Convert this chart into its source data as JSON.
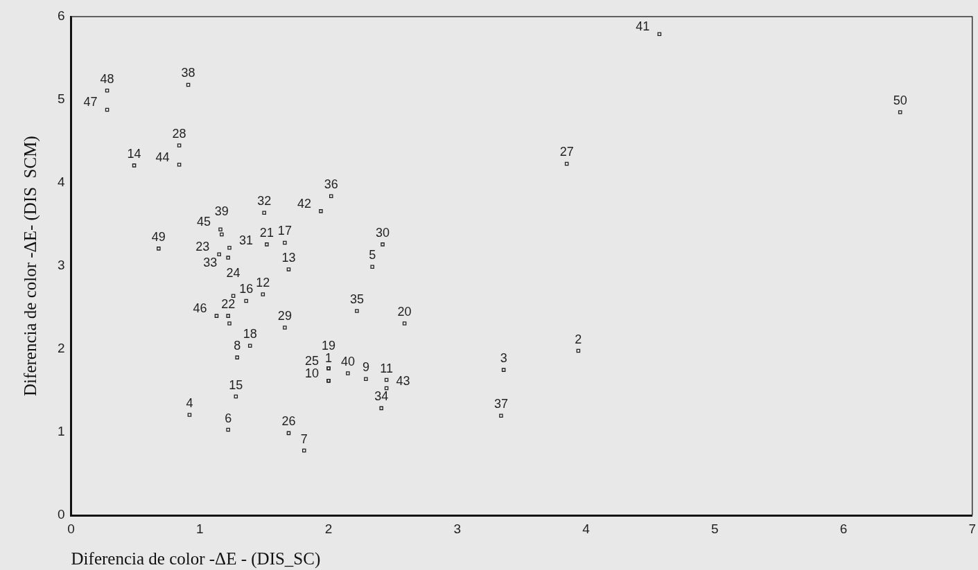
{
  "chart_data": {
    "type": "scatter",
    "xlabel": "Diferencia de color -ΔE - (DIS_SC)",
    "ylabel": "Diferencia de color -ΔE- (DIS  SCM)",
    "xlim": [
      0,
      7
    ],
    "xticks": [
      0,
      1,
      2,
      3,
      4,
      5,
      6,
      7
    ],
    "ylim": [
      0,
      6
    ],
    "yticks": [
      0,
      1,
      2,
      3,
      4,
      5,
      6
    ],
    "grid": false,
    "legend": false,
    "marker": "square",
    "series": [
      {
        "color": "#222222",
        "x": [
          2.0,
          3.94,
          3.36,
          0.92,
          2.34,
          1.22,
          1.81,
          1.29,
          2.29,
          2.0,
          2.45,
          1.49,
          1.69,
          0.49,
          1.28,
          1.36,
          1.66,
          1.39,
          2.0,
          2.59,
          1.52,
          1.22,
          1.15,
          1.26,
          2.0,
          1.69,
          3.85,
          0.84,
          1.66,
          2.42,
          1.23,
          1.5,
          1.22,
          2.41,
          2.22,
          2.02,
          3.34,
          0.91,
          1.17,
          2.15,
          4.57,
          1.94,
          2.45,
          0.84,
          1.16,
          1.13,
          0.28,
          0.28,
          0.68,
          6.44,
          1.23
        ],
        "values": [
          1.62,
          1.98,
          1.75,
          1.21,
          2.99,
          1.03,
          0.78,
          1.9,
          1.64,
          1.62,
          1.63,
          2.66,
          2.96,
          4.21,
          1.43,
          2.58,
          3.28,
          2.04,
          1.77,
          2.31,
          3.26,
          2.4,
          3.14,
          2.64,
          1.77,
          0.99,
          4.23,
          4.45,
          2.26,
          3.26,
          3.22,
          3.64,
          3.1,
          1.29,
          2.46,
          3.84,
          1.2,
          5.18,
          3.38,
          1.71,
          5.79,
          3.66,
          1.53,
          4.22,
          3.44,
          2.4,
          4.88,
          5.11,
          3.21,
          4.85,
          2.31
        ]
      }
    ],
    "annotations": [
      {
        "text": "1",
        "x": 2.0,
        "y": 1.62
      },
      {
        "text": "2",
        "x": 3.94,
        "y": 1.98
      },
      {
        "text": "3",
        "x": 3.36,
        "y": 1.75
      },
      {
        "text": "4",
        "x": 0.92,
        "y": 1.21
      },
      {
        "text": "5",
        "x": 2.34,
        "y": 2.99
      },
      {
        "text": "6",
        "x": 1.22,
        "y": 1.03
      },
      {
        "text": "7",
        "x": 1.81,
        "y": 0.78
      },
      {
        "text": "8",
        "x": 1.29,
        "y": 1.9
      },
      {
        "text": "9",
        "x": 2.29,
        "y": 1.64
      },
      {
        "text": "10",
        "x": 2.0,
        "y": 1.62
      },
      {
        "text": "11",
        "x": 2.45,
        "y": 1.63
      },
      {
        "text": "12",
        "x": 1.49,
        "y": 2.66
      },
      {
        "text": "13",
        "x": 1.69,
        "y": 2.96
      },
      {
        "text": "14",
        "x": 0.49,
        "y": 4.21
      },
      {
        "text": "15",
        "x": 1.28,
        "y": 1.43
      },
      {
        "text": "16",
        "x": 1.36,
        "y": 2.58
      },
      {
        "text": "17",
        "x": 1.66,
        "y": 3.28
      },
      {
        "text": "18",
        "x": 1.39,
        "y": 2.04
      },
      {
        "text": "19",
        "x": 2.0,
        "y": 1.77
      },
      {
        "text": "20",
        "x": 2.59,
        "y": 2.31
      },
      {
        "text": "21",
        "x": 1.52,
        "y": 3.26
      },
      {
        "text": "22",
        "x": 1.22,
        "y": 2.4
      },
      {
        "text": "23",
        "x": 1.15,
        "y": 3.14
      },
      {
        "text": "24",
        "x": 1.26,
        "y": 2.64
      },
      {
        "text": "25",
        "x": 2.0,
        "y": 1.77
      },
      {
        "text": "26",
        "x": 1.69,
        "y": 0.99
      },
      {
        "text": "27",
        "x": 3.85,
        "y": 4.23
      },
      {
        "text": "28",
        "x": 0.84,
        "y": 4.45
      },
      {
        "text": "29",
        "x": 1.66,
        "y": 2.26
      },
      {
        "text": "30",
        "x": 2.42,
        "y": 3.26
      },
      {
        "text": "31",
        "x": 1.23,
        "y": 3.22
      },
      {
        "text": "32",
        "x": 1.5,
        "y": 3.64
      },
      {
        "text": "33",
        "x": 1.22,
        "y": 3.1
      },
      {
        "text": "34",
        "x": 2.41,
        "y": 1.29
      },
      {
        "text": "35",
        "x": 2.22,
        "y": 2.46
      },
      {
        "text": "36",
        "x": 2.02,
        "y": 3.84
      },
      {
        "text": "37",
        "x": 3.34,
        "y": 1.2
      },
      {
        "text": "38",
        "x": 0.91,
        "y": 5.18
      },
      {
        "text": "39",
        "x": 1.17,
        "y": 3.38
      },
      {
        "text": "40",
        "x": 2.15,
        "y": 1.71
      },
      {
        "text": "41",
        "x": 4.57,
        "y": 5.79
      },
      {
        "text": "42",
        "x": 1.94,
        "y": 3.66
      },
      {
        "text": "43",
        "x": 2.45,
        "y": 1.53
      },
      {
        "text": "44",
        "x": 0.84,
        "y": 4.22
      },
      {
        "text": "45",
        "x": 1.16,
        "y": 3.44
      },
      {
        "text": "46",
        "x": 1.13,
        "y": 2.4
      },
      {
        "text": "47",
        "x": 0.28,
        "y": 4.88
      },
      {
        "text": "48",
        "x": 0.28,
        "y": 5.11
      },
      {
        "text": "49",
        "x": 0.68,
        "y": 3.21
      },
      {
        "text": "50",
        "x": 6.44,
        "y": 4.85
      }
    ]
  }
}
